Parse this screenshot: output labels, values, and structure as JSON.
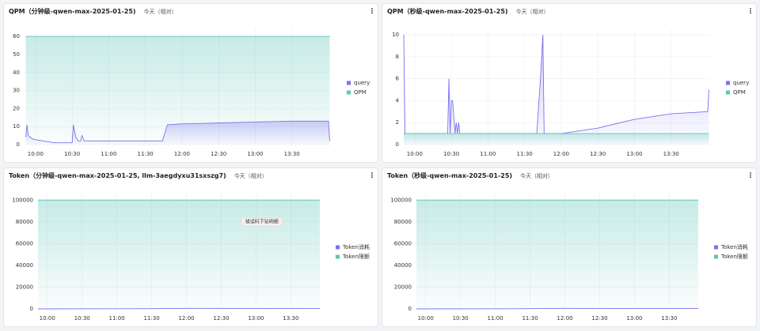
{
  "chart_data": [
    {
      "type": "line",
      "title": "QPM（分钟级-qwen-max-2025-01-25)",
      "subtitle": "今天（相对）",
      "legend": "right",
      "grid": true,
      "xlim": [
        "09:51",
        "14:02"
      ],
      "xticks": [
        "10:00",
        "10:30",
        "11:00",
        "11:30",
        "12:00",
        "12:30",
        "13:00",
        "13:30"
      ],
      "ylim": [
        0,
        64
      ],
      "yticks": [
        0,
        10,
        20,
        30,
        40,
        50,
        60
      ],
      "series": [
        {
          "name": "query",
          "color": "#7b70f2",
          "x": [
            "09:52",
            "09:53",
            "09:54",
            "09:58",
            "10:15",
            "10:30",
            "10:31",
            "10:33",
            "10:35",
            "10:37",
            "10:38",
            "10:40",
            "11:00",
            "11:30",
            "11:44",
            "11:48",
            "12:00",
            "12:30",
            "13:00",
            "13:30",
            "14:00",
            "14:01"
          ],
          "values": [
            4,
            11,
            5,
            3,
            1,
            1,
            11,
            4,
            2,
            2,
            5,
            2,
            2,
            2,
            2,
            11,
            11.5,
            12,
            12.5,
            13,
            13,
            2
          ]
        },
        {
          "name": "QPM",
          "color": "#5fc6b8",
          "x": [
            "09:52",
            "14:01"
          ],
          "values": [
            60,
            60
          ]
        }
      ]
    },
    {
      "type": "line",
      "title": "QPM（秒级-qwen-max-2025-01-25)",
      "subtitle": "今天（相对）",
      "legend": "right",
      "grid": true,
      "xlim": [
        "09:51",
        "14:02"
      ],
      "xticks": [
        "10:00",
        "10:30",
        "11:00",
        "11:30",
        "12:00",
        "12:30",
        "13:00",
        "13:30"
      ],
      "ylim": [
        0,
        10.5
      ],
      "yticks": [
        0,
        2,
        4,
        6,
        8,
        10
      ],
      "series": [
        {
          "name": "query",
          "color": "#7b70f2",
          "x": [
            "09:51",
            "09:52",
            "10:27",
            "10:28",
            "10:29",
            "10:30",
            "10:31",
            "10:33",
            "10:34",
            "10:35",
            "10:36",
            "10:37",
            "11:40",
            "11:43",
            "11:45",
            "11:46",
            "12:00",
            "12:30",
            "13:00",
            "13:30",
            "14:00",
            "14:01"
          ],
          "values": [
            10,
            1,
            1,
            6,
            1,
            4,
            4,
            1,
            2,
            1,
            2,
            1,
            1,
            6,
            10,
            1,
            1,
            1.5,
            2.3,
            2.8,
            3,
            5
          ]
        },
        {
          "name": "QPM",
          "color": "#5fc6b8",
          "x": [
            "09:51",
            "14:01"
          ],
          "values": [
            1,
            1
          ]
        }
      ]
    },
    {
      "type": "line",
      "title": "Token（分钟级-qwen-max-2025-01-25, llm-3aegdyxu31sxszg7)",
      "subtitle": "今天（相对）",
      "legend": "right",
      "grid": true,
      "xlim": [
        "09:52",
        "13:55"
      ],
      "xticks": [
        "10:00",
        "10:30",
        "11:00",
        "11:30",
        "12:00",
        "12:30",
        "13:00",
        "13:30"
      ],
      "ylim": [
        0,
        106000
      ],
      "yticks": [
        0,
        20000,
        40000,
        60000,
        80000,
        100000
      ],
      "annotations": [
        {
          "text": "错误码下钻明细",
          "x": "13:05",
          "y": 80000
        }
      ],
      "series": [
        {
          "name": "Token消耗",
          "color": "#7b70f2",
          "x": [
            "09:52",
            "11:30",
            "12:00",
            "13:55"
          ],
          "values": [
            0,
            200,
            500,
            300
          ]
        },
        {
          "name": "Token限额",
          "color": "#5fc6b8",
          "x": [
            "09:52",
            "13:55"
          ],
          "values": [
            100000,
            100000
          ]
        }
      ]
    },
    {
      "type": "line",
      "title": "Token（秒级-qwen-max-2025-01-25)",
      "subtitle": "今天（相对）",
      "legend": "right",
      "grid": true,
      "xlim": [
        "09:52",
        "13:55"
      ],
      "xticks": [
        "10:00",
        "10:30",
        "11:00",
        "11:30",
        "12:00",
        "12:30",
        "13:00",
        "13:30"
      ],
      "ylim": [
        0,
        106000
      ],
      "yticks": [
        0,
        20000,
        40000,
        60000,
        80000,
        100000
      ],
      "series": [
        {
          "name": "Token消耗",
          "color": "#7b70f2",
          "x": [
            "09:52",
            "11:30",
            "12:00",
            "13:55"
          ],
          "values": [
            0,
            200,
            500,
            300
          ]
        },
        {
          "name": "Token限额",
          "color": "#5fc6b8",
          "x": [
            "09:52",
            "13:55"
          ],
          "values": [
            100000,
            100000
          ]
        }
      ]
    }
  ]
}
